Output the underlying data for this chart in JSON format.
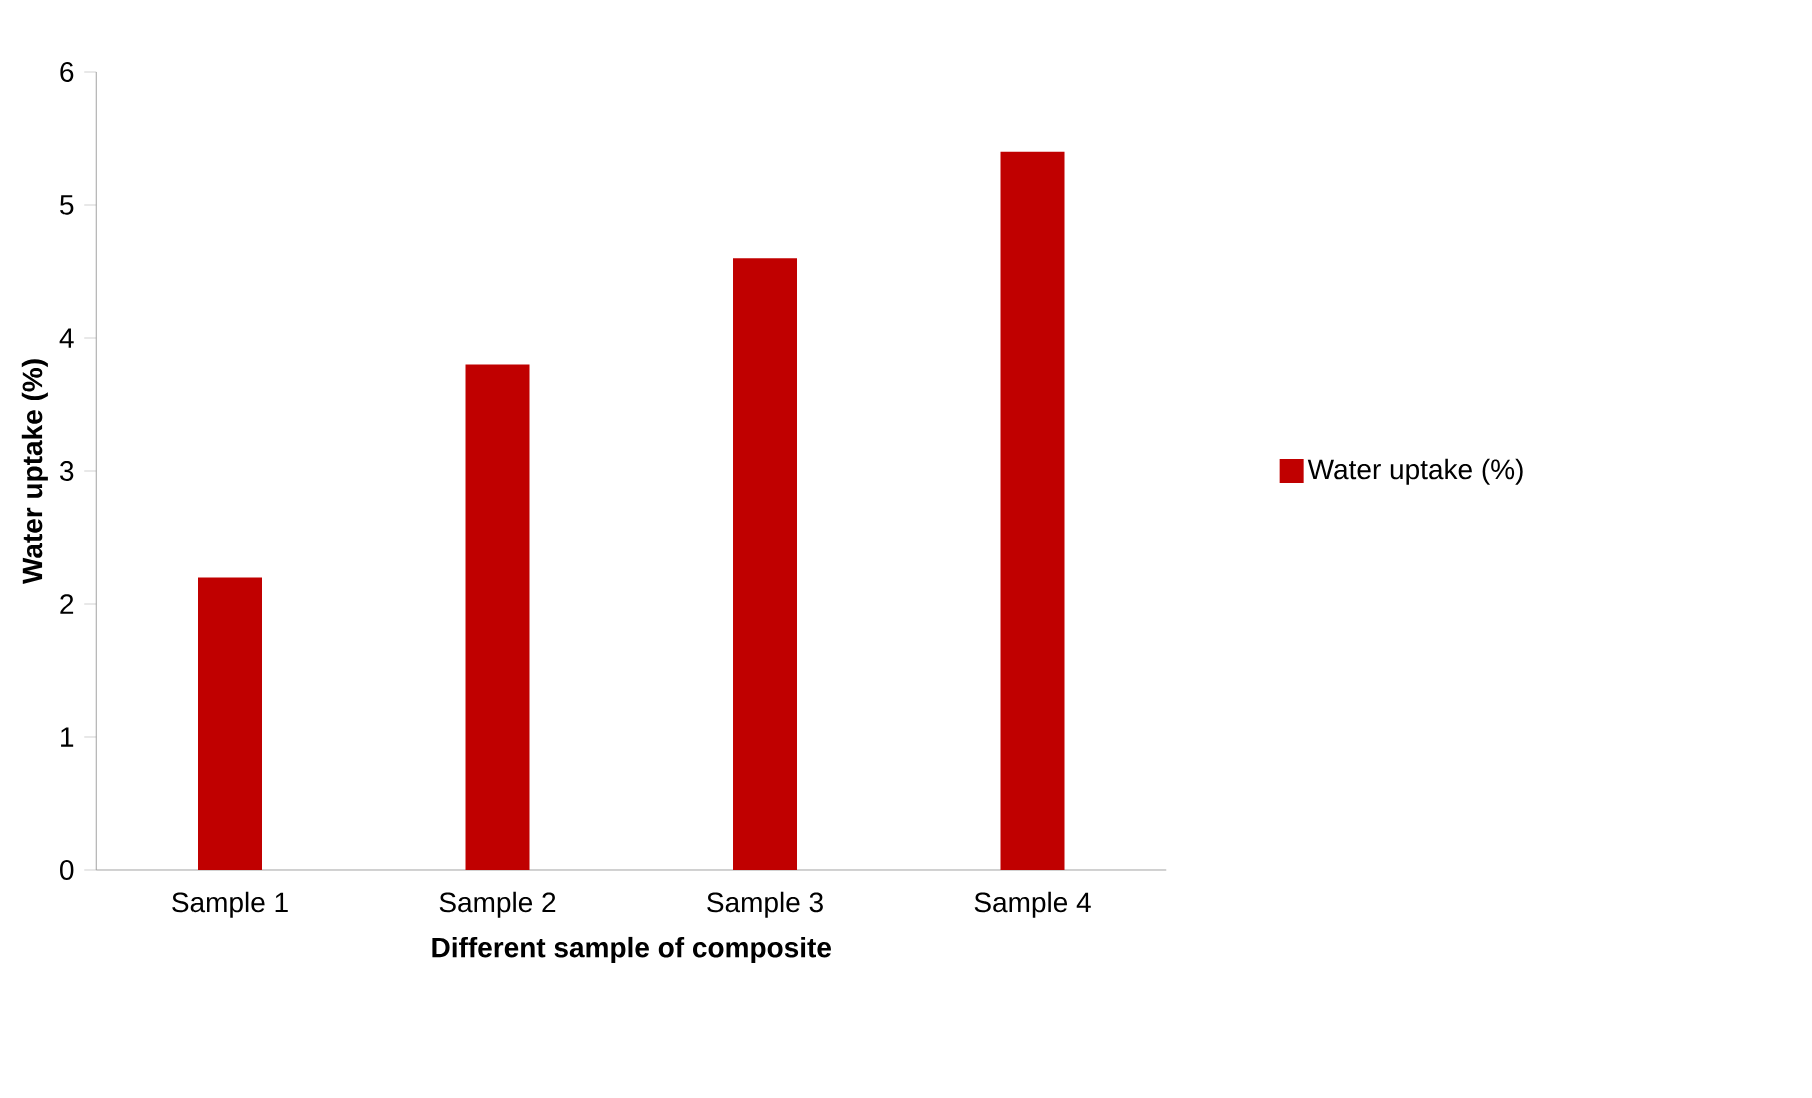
{
  "chart_data": {
    "type": "bar",
    "xlabel": "Different sample of composite",
    "ylabel": "Water uptake (%)",
    "categories": [
      "Sample 1",
      "Sample 2",
      "Sample 3",
      "Sample 4"
    ],
    "series": [
      {
        "name": "Water uptake (%)",
        "color": "#c00000",
        "values": [
          2.2,
          3.8,
          4.6,
          5.4
        ]
      }
    ],
    "ylim": [
      0,
      6
    ],
    "yticks": [
      0,
      1,
      2,
      3,
      4,
      5,
      6
    ],
    "legend": "right"
  }
}
